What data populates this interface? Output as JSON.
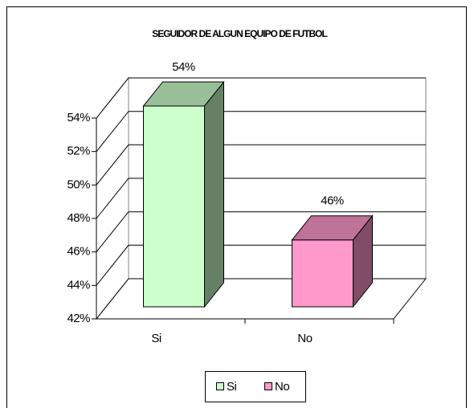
{
  "chart_data": {
    "type": "bar3d",
    "title": "SEGUIDOR DE ALGUN EQUIPO DE FUTBOL",
    "categories": [
      "Si",
      "No"
    ],
    "values": [
      54,
      46
    ],
    "value_labels": [
      "54%",
      "46%"
    ],
    "colors": [
      "#ccffcc",
      "#ff99cc"
    ],
    "ylim": [
      42,
      54
    ],
    "yticks": [
      {
        "value": 42,
        "label": "42%"
      },
      {
        "value": 44,
        "label": "44%"
      },
      {
        "value": 46,
        "label": "46%"
      },
      {
        "value": 48,
        "label": "48%"
      },
      {
        "value": 50,
        "label": "50%"
      },
      {
        "value": 52,
        "label": "52%"
      },
      {
        "value": 54,
        "label": "54%"
      }
    ],
    "grid": true,
    "legend": "bottom"
  }
}
